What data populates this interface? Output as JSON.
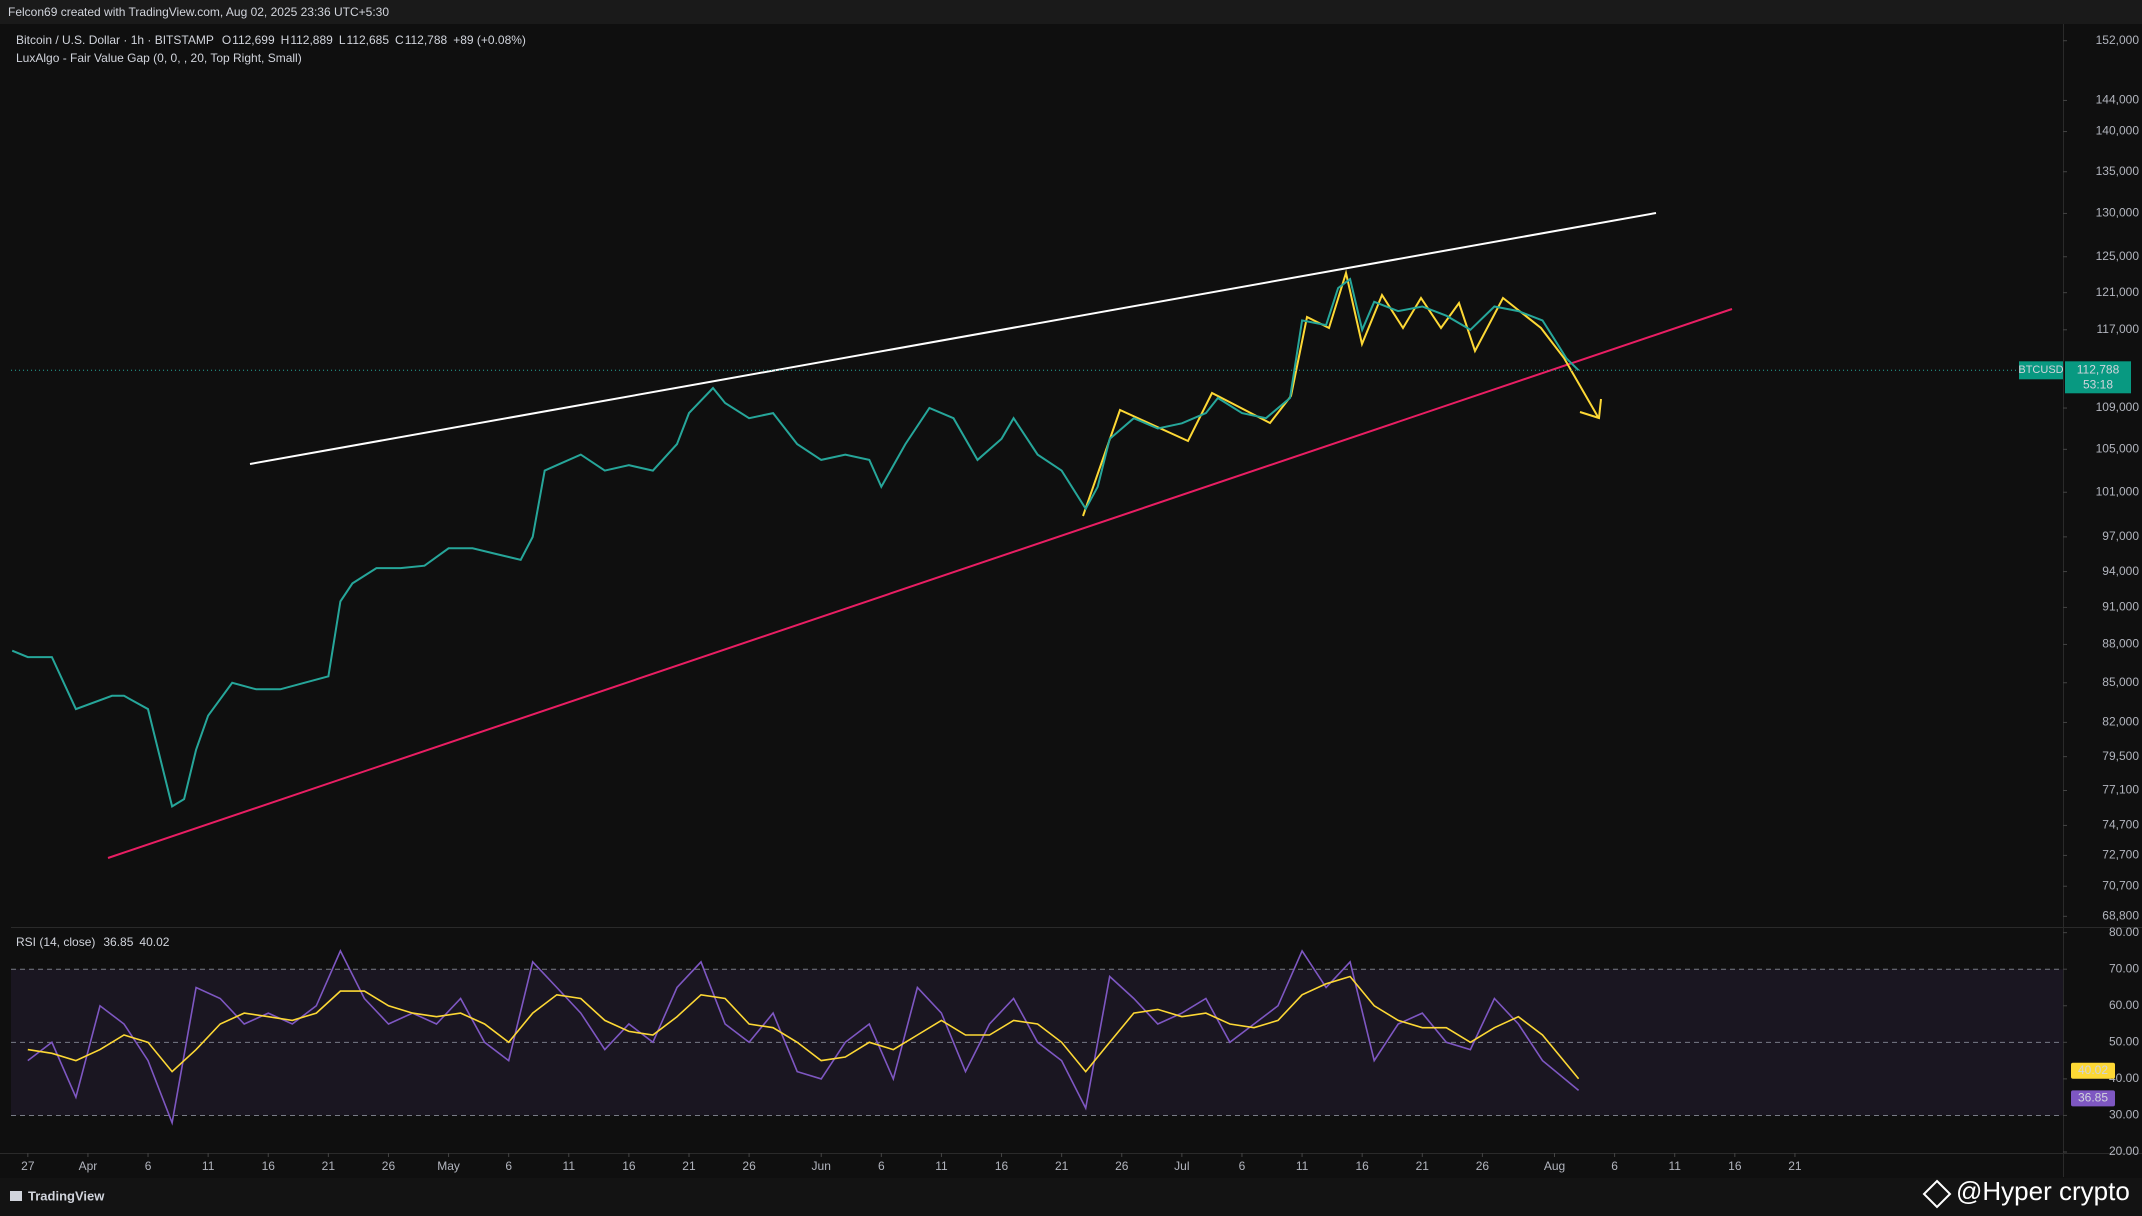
{
  "header": {
    "text": "Felcon69 created with TradingView.com, Aug 02, 2025 23:36 UTC+5:30"
  },
  "legend": {
    "title": "Bitcoin / U.S. Dollar · 1h · BITSTAMP",
    "items": [
      {
        "k": "O",
        "v": "112,699"
      },
      {
        "k": "H",
        "v": "112,889"
      },
      {
        "k": "L",
        "v": "112,685"
      },
      {
        "k": "C",
        "v": "112,788"
      }
    ],
    "change": "+89 (+0.08%)",
    "indicator": "LuxAlgo - Fair Value Gap (0, 0, , 20, Top Right, Small)"
  },
  "price_label": {
    "symbol": "BTCUSD",
    "price": "112,788",
    "countdown": "53:18"
  },
  "footer": {
    "brand": "TradingView",
    "watermark": "@Hyper crypto"
  },
  "chart_data": [
    {
      "type": "line",
      "log_scale": true,
      "grid": false,
      "xlim": [
        -1.4,
        169.3
      ],
      "ylim": [
        68200,
        153900
      ],
      "yticks": [
        {
          "value": 152000,
          "label": "152,000"
        },
        {
          "value": 144000,
          "label": "144,000"
        },
        {
          "value": 140000,
          "label": "140,000"
        },
        {
          "value": 135000,
          "label": "135,000"
        },
        {
          "value": 130000,
          "label": "130,000"
        },
        {
          "value": 125000,
          "label": "125,000"
        },
        {
          "value": 121000,
          "label": "121,000"
        },
        {
          "value": 117000,
          "label": "117,000"
        },
        {
          "value": 109000,
          "label": "109,000"
        },
        {
          "value": 105000,
          "label": "105,000"
        },
        {
          "value": 101000,
          "label": "101,000"
        },
        {
          "value": 97000,
          "label": "97,000"
        },
        {
          "value": 94000,
          "label": "94,000"
        },
        {
          "value": 91000,
          "label": "91,000"
        },
        {
          "value": 88000,
          "label": "88,000"
        },
        {
          "value": 85000,
          "label": "85,000"
        },
        {
          "value": 82000,
          "label": "82,000"
        },
        {
          "value": 79500,
          "label": "79,500"
        },
        {
          "value": 77100,
          "label": "77,100"
        },
        {
          "value": 74700,
          "label": "74,700"
        },
        {
          "value": 72700,
          "label": "72,700"
        },
        {
          "value": 70700,
          "label": "70,700"
        },
        {
          "value": 68800,
          "label": "68,800"
        }
      ],
      "series": [
        {
          "name": "BTCUSD",
          "color": "#26a69a",
          "x": [
            -1.3,
            0,
            2,
            4,
            7,
            8,
            10,
            12,
            13,
            14,
            15,
            17,
            19,
            21,
            23,
            25,
            26,
            27,
            29,
            31,
            33,
            35,
            37,
            39,
            41,
            42,
            43,
            44,
            46,
            48,
            50,
            52,
            54,
            55,
            57,
            58,
            60,
            62,
            64,
            66,
            68,
            70,
            71,
            73,
            75,
            77,
            79,
            81,
            82,
            84,
            86,
            88,
            89,
            90,
            92,
            94,
            96,
            98,
            99,
            101,
            103,
            105,
            106,
            108,
            109,
            110,
            111,
            112,
            114,
            116,
            118,
            120,
            122,
            124,
            126,
            127,
            128,
            129
          ],
          "values": [
            87500,
            87000,
            87000,
            83000,
            84000,
            84000,
            83000,
            76000,
            76500,
            80000,
            82500,
            85000,
            84500,
            84500,
            85000,
            85500,
            91500,
            93000,
            94300,
            94300,
            94500,
            96000,
            96000,
            95500,
            95000,
            97000,
            103000,
            103500,
            104500,
            103000,
            103500,
            103000,
            105500,
            108500,
            111000,
            109500,
            108000,
            108500,
            105500,
            104000,
            104500,
            104000,
            101500,
            105500,
            109000,
            108000,
            104000,
            106000,
            108000,
            104500,
            103000,
            99500,
            101500,
            106000,
            108000,
            107000,
            107500,
            108500,
            110000,
            108500,
            108000,
            110000,
            118000,
            117500,
            121500,
            122500,
            117000,
            120000,
            119000,
            119500,
            118500,
            117000,
            119500,
            119000,
            118000,
            116000,
            114000,
            112788
          ]
        }
      ]
    },
    {
      "type": "line",
      "title": "RSI (14, close)",
      "grid": false,
      "xlim": [
        -1.4,
        169.3
      ],
      "ylim": [
        20,
        81
      ],
      "yticks": [
        {
          "value": 80,
          "label": "80.00"
        },
        {
          "value": 70,
          "label": "70.00"
        },
        {
          "value": 60,
          "label": "60.00"
        },
        {
          "value": 50,
          "label": "50.00"
        },
        {
          "value": 40,
          "label": "40.00"
        },
        {
          "value": 30,
          "label": "30.00"
        },
        {
          "value": 20,
          "label": "20.00"
        }
      ],
      "levels": [
        70,
        50,
        30
      ],
      "xticks": [
        {
          "value": 0,
          "label": "27"
        },
        {
          "value": 5,
          "label": "Apr"
        },
        {
          "value": 10,
          "label": "6"
        },
        {
          "value": 15,
          "label": "11"
        },
        {
          "value": 20,
          "label": "16"
        },
        {
          "value": 25,
          "label": "21"
        },
        {
          "value": 30,
          "label": "26"
        },
        {
          "value": 35,
          "label": "May"
        },
        {
          "value": 40,
          "label": "6"
        },
        {
          "value": 45,
          "label": "11"
        },
        {
          "value": 50,
          "label": "16"
        },
        {
          "value": 55,
          "label": "21"
        },
        {
          "value": 60,
          "label": "26"
        },
        {
          "value": 66,
          "label": "Jun"
        },
        {
          "value": 71,
          "label": "6"
        },
        {
          "value": 76,
          "label": "11"
        },
        {
          "value": 81,
          "label": "16"
        },
        {
          "value": 86,
          "label": "21"
        },
        {
          "value": 91,
          "label": "26"
        },
        {
          "value": 96,
          "label": "Jul"
        },
        {
          "value": 101,
          "label": "6"
        },
        {
          "value": 106,
          "label": "11"
        },
        {
          "value": 111,
          "label": "16"
        },
        {
          "value": 116,
          "label": "21"
        },
        {
          "value": 121,
          "label": "26"
        },
        {
          "value": 127,
          "label": "Aug"
        },
        {
          "value": 132,
          "label": "6"
        },
        {
          "value": 137,
          "label": "11"
        },
        {
          "value": 142,
          "label": "16"
        },
        {
          "value": 147,
          "label": "21"
        }
      ],
      "series": [
        {
          "name": "RSI",
          "color": "#7e57c2",
          "x": [
            0,
            2,
            4,
            6,
            8,
            10,
            12,
            14,
            16,
            18,
            20,
            22,
            24,
            26,
            28,
            30,
            32,
            34,
            36,
            38,
            40,
            42,
            44,
            46,
            48,
            50,
            52,
            54,
            56,
            58,
            60,
            62,
            64,
            66,
            68,
            70,
            72,
            74,
            76,
            78,
            80,
            82,
            84,
            86,
            88,
            90,
            92,
            94,
            96,
            98,
            100,
            102,
            104,
            106,
            108,
            110,
            112,
            114,
            116,
            118,
            120,
            122,
            124,
            126,
            129
          ],
          "values": [
            45,
            50,
            35,
            60,
            55,
            45,
            28,
            65,
            62,
            55,
            58,
            55,
            60,
            75,
            62,
            55,
            58,
            55,
            62,
            50,
            45,
            72,
            65,
            58,
            48,
            55,
            50,
            65,
            72,
            55,
            50,
            58,
            42,
            40,
            50,
            55,
            40,
            65,
            58,
            42,
            55,
            62,
            50,
            45,
            32,
            68,
            62,
            55,
            58,
            62,
            50,
            55,
            60,
            75,
            65,
            72,
            45,
            55,
            58,
            50,
            48,
            62,
            55,
            45,
            36.85
          ]
        },
        {
          "name": "RSI-based MA",
          "color": "#fdd835",
          "x": [
            0,
            2,
            4,
            6,
            8,
            10,
            12,
            14,
            16,
            18,
            20,
            22,
            24,
            26,
            28,
            30,
            32,
            34,
            36,
            38,
            40,
            42,
            44,
            46,
            48,
            50,
            52,
            54,
            56,
            58,
            60,
            62,
            64,
            66,
            68,
            70,
            72,
            74,
            76,
            78,
            80,
            82,
            84,
            86,
            88,
            90,
            92,
            94,
            96,
            98,
            100,
            102,
            104,
            106,
            108,
            110,
            112,
            114,
            116,
            118,
            120,
            122,
            124,
            126,
            129
          ],
          "values": [
            48,
            47,
            45,
            48,
            52,
            50,
            42,
            48,
            55,
            58,
            57,
            56,
            58,
            64,
            64,
            60,
            58,
            57,
            58,
            55,
            50,
            58,
            63,
            62,
            56,
            53,
            52,
            57,
            63,
            62,
            55,
            54,
            50,
            45,
            46,
            50,
            48,
            52,
            56,
            52,
            52,
            56,
            55,
            50,
            42,
            50,
            58,
            59,
            57,
            58,
            55,
            54,
            56,
            63,
            66,
            68,
            60,
            56,
            54,
            54,
            50,
            54,
            57,
            52,
            40.02
          ]
        }
      ]
    }
  ]
}
